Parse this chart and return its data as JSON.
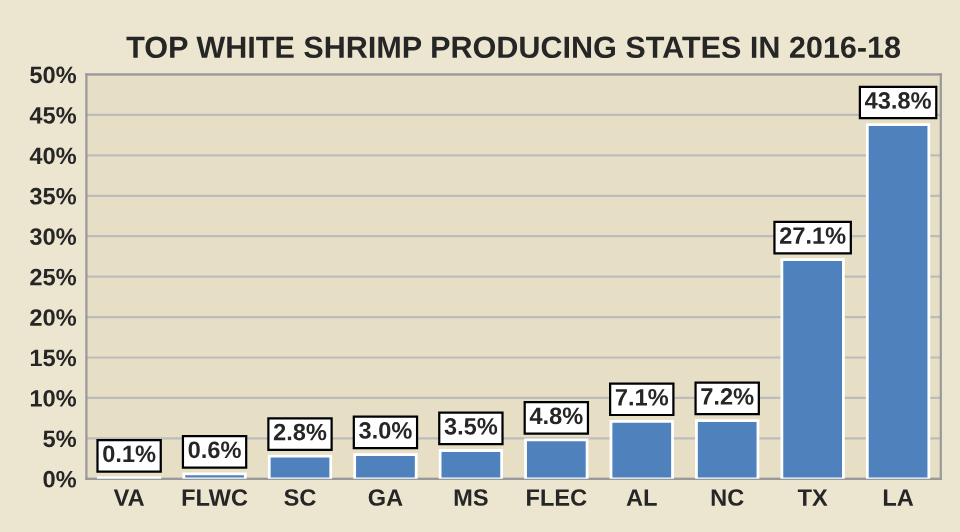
{
  "chart_data": {
    "type": "bar",
    "title": "TOP WHITE SHRIMP PRODUCING STATES IN 2016-18",
    "categories": [
      "VA",
      "FLWC",
      "SC",
      "GA",
      "MS",
      "FLEC",
      "AL",
      "NC",
      "TX",
      "LA"
    ],
    "values": [
      0.1,
      0.6,
      2.8,
      3.0,
      3.5,
      4.8,
      7.1,
      7.2,
      27.1,
      43.8
    ],
    "value_labels": [
      "0.1%",
      "0.6%",
      "2.8%",
      "3.0%",
      "3.5%",
      "4.8%",
      "7.1%",
      "7.2%",
      "27.1%",
      "43.8%"
    ],
    "color": "#4f81bd",
    "ylim": [
      0,
      50
    ],
    "yticks": [
      {
        "value": 0,
        "label": "0%"
      },
      {
        "value": 5,
        "label": "5%"
      },
      {
        "value": 10,
        "label": "10%"
      },
      {
        "value": 15,
        "label": "15%"
      },
      {
        "value": 20,
        "label": "20%"
      },
      {
        "value": 25,
        "label": "25%"
      },
      {
        "value": 30,
        "label": "30%"
      },
      {
        "value": 35,
        "label": "35%"
      },
      {
        "value": 40,
        "label": "40%"
      },
      {
        "value": 45,
        "label": "45%"
      },
      {
        "value": 50,
        "label": "50%"
      }
    ],
    "grid": "y"
  }
}
